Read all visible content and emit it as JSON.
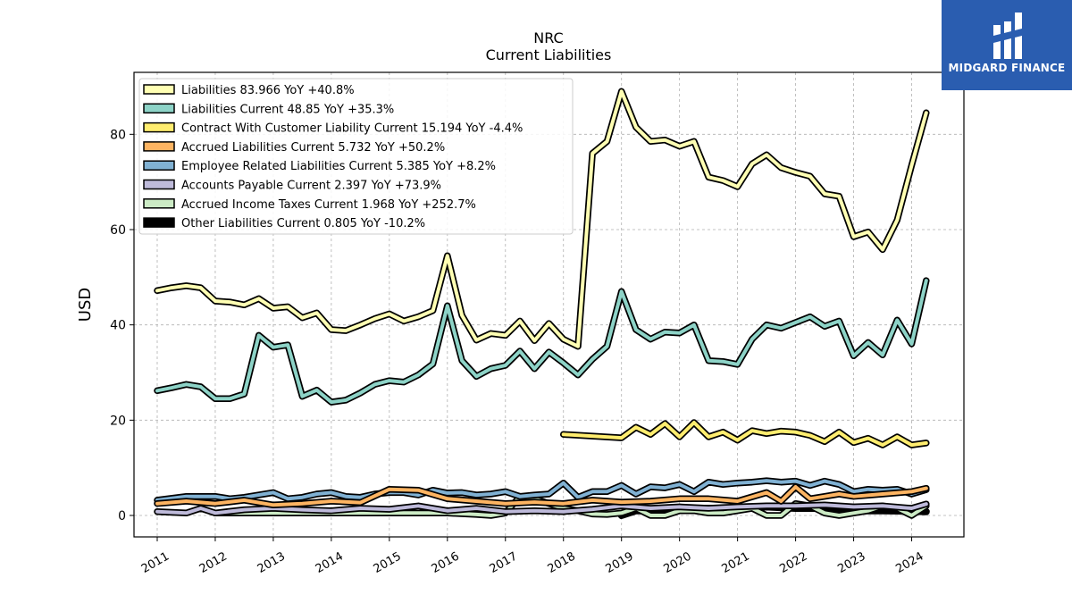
{
  "brand": {
    "name": "MIDGARD FINANCE",
    "bg_color": "#2a5db0",
    "icon": "midgard-logo-icon"
  },
  "chart_data": {
    "type": "line",
    "title": "NRC",
    "subtitle": "Current  Liabilities",
    "ylabel": "USD",
    "xlabel": "",
    "xlim": [
      2010.6,
      2024.9
    ],
    "ylim": [
      -4.5,
      93
    ],
    "yticks": [
      0,
      20,
      40,
      60,
      80
    ],
    "xticks": [
      "2011",
      "2012",
      "2013",
      "2014",
      "2015",
      "2016",
      "2017",
      "2018",
      "2019",
      "2020",
      "2021",
      "2022",
      "2023",
      "2024"
    ],
    "grid": true,
    "legend_position": "top-left",
    "series": [
      {
        "name": "Liabilities  83.966 YoY +40.8%",
        "color": "#ffffb3",
        "x": [
          2011.0,
          2011.25,
          2011.5,
          2011.75,
          2012.0,
          2012.25,
          2012.5,
          2012.75,
          2013.0,
          2013.25,
          2013.5,
          2013.75,
          2014.0,
          2014.25,
          2014.5,
          2014.75,
          2015.0,
          2015.25,
          2015.5,
          2015.75,
          2016.0,
          2016.25,
          2016.5,
          2016.75,
          2017.0,
          2017.25,
          2017.5,
          2017.75,
          2018.0,
          2018.25,
          2018.5,
          2018.75,
          2019.0,
          2019.25,
          2019.5,
          2019.75,
          2020.0,
          2020.25,
          2020.5,
          2020.75,
          2021.0,
          2021.25,
          2021.5,
          2021.75,
          2022.0,
          2022.25,
          2022.5,
          2022.75,
          2023.0,
          2023.25,
          2023.5,
          2023.75,
          2024.0,
          2024.25
        ],
        "values": [
          47.2,
          47.8,
          48.2,
          47.8,
          45.0,
          44.8,
          44.2,
          45.5,
          43.5,
          43.8,
          41.5,
          42.5,
          39.0,
          38.8,
          40.0,
          41.3,
          42.3,
          40.8,
          41.7,
          43.0,
          54.5,
          42.0,
          36.8,
          38.2,
          37.8,
          40.8,
          36.7,
          40.3,
          37.0,
          35.5,
          76.0,
          78.5,
          89.0,
          81.5,
          78.5,
          78.8,
          77.5,
          78.5,
          71.0,
          70.3,
          69.0,
          73.8,
          75.7,
          73.0,
          72.0,
          71.2,
          67.5,
          67.0,
          58.5,
          59.5,
          55.8,
          62.0,
          73.5,
          84.5
        ]
      },
      {
        "name": "Liabilities Current  48.85 YoY +35.3%",
        "color": "#8dd3c7",
        "x": [
          2011.0,
          2011.25,
          2011.5,
          2011.75,
          2012.0,
          2012.25,
          2012.5,
          2012.75,
          2013.0,
          2013.25,
          2013.5,
          2013.75,
          2014.0,
          2014.25,
          2014.5,
          2014.75,
          2015.0,
          2015.25,
          2015.5,
          2015.75,
          2016.0,
          2016.25,
          2016.5,
          2016.75,
          2017.0,
          2017.25,
          2017.5,
          2017.75,
          2018.0,
          2018.25,
          2018.5,
          2018.75,
          2019.0,
          2019.25,
          2019.5,
          2019.75,
          2020.0,
          2020.25,
          2020.5,
          2020.75,
          2021.0,
          2021.25,
          2021.5,
          2021.75,
          2022.0,
          2022.25,
          2022.5,
          2022.75,
          2023.0,
          2023.25,
          2023.5,
          2023.75,
          2024.0,
          2024.25
        ],
        "values": [
          26.2,
          26.8,
          27.5,
          27.0,
          24.5,
          24.5,
          25.5,
          37.8,
          35.3,
          35.8,
          25.0,
          26.3,
          23.8,
          24.2,
          25.7,
          27.5,
          28.3,
          28.0,
          29.5,
          31.8,
          44.0,
          32.5,
          29.2,
          30.8,
          31.5,
          34.5,
          30.8,
          34.3,
          32.0,
          29.5,
          32.8,
          35.5,
          47.0,
          39.0,
          37.0,
          38.5,
          38.3,
          40.0,
          32.5,
          32.3,
          31.7,
          37.0,
          40.0,
          39.3,
          40.5,
          41.7,
          39.7,
          40.8,
          33.5,
          36.3,
          33.7,
          41.0,
          36.0,
          49.3
        ]
      },
      {
        "name": "Contract With Customer Liability Current  15.194 YoY -4.4%",
        "color": "#ffed6f",
        "x": [
          2018.0,
          2019.0,
          2019.25,
          2019.5,
          2019.75,
          2020.0,
          2020.25,
          2020.5,
          2020.75,
          2021.0,
          2021.25,
          2021.5,
          2021.75,
          2022.0,
          2022.25,
          2022.5,
          2022.75,
          2023.0,
          2023.25,
          2023.5,
          2023.75,
          2024.0,
          2024.25
        ],
        "values": [
          17.0,
          16.3,
          18.5,
          17.0,
          19.3,
          16.5,
          19.5,
          16.5,
          17.5,
          15.8,
          17.8,
          17.2,
          17.7,
          17.5,
          16.8,
          15.5,
          17.5,
          15.3,
          16.2,
          14.8,
          16.5,
          14.8,
          15.2
        ]
      },
      {
        "name": "Accrued Liabilities Current  5.732 YoY +50.2%",
        "color": "#fdb462",
        "x": [
          2011.0,
          2011.5,
          2012.0,
          2012.5,
          2013.0,
          2013.5,
          2014.0,
          2014.5,
          2015.0,
          2015.5,
          2016.0,
          2016.5,
          2017.0,
          2017.5,
          2018.0,
          2018.5,
          2019.0,
          2019.5,
          2020.0,
          2020.5,
          2021.0,
          2021.5,
          2021.75,
          2022.0,
          2022.25,
          2022.5,
          2022.75,
          2023.0,
          2023.5,
          2024.0,
          2024.25
        ],
        "values": [
          2.5,
          3.0,
          2.5,
          3.2,
          2.2,
          2.5,
          3.0,
          2.7,
          5.5,
          5.3,
          3.5,
          3.0,
          2.5,
          2.8,
          2.5,
          3.2,
          2.8,
          3.0,
          3.5,
          3.5,
          3.0,
          4.8,
          3.0,
          6.0,
          3.5,
          4.0,
          4.5,
          4.0,
          4.5,
          5.0,
          5.7
        ]
      },
      {
        "name": "Employee Related Liabilities Current  5.385 YoY +8.2%",
        "color": "#80b1d3",
        "x": [
          2011.0,
          2011.5,
          2012.0,
          2012.25,
          2012.5,
          2013.0,
          2013.25,
          2013.5,
          2013.75,
          2014.0,
          2014.25,
          2014.5,
          2014.75,
          2015.0,
          2015.25,
          2015.5,
          2015.75,
          2016.0,
          2016.25,
          2016.5,
          2016.75,
          2017.0,
          2017.25,
          2017.5,
          2017.75,
          2018.0,
          2018.25,
          2018.5,
          2018.75,
          2019.0,
          2019.25,
          2019.5,
          2019.75,
          2020.0,
          2020.25,
          2020.5,
          2020.75,
          2021.0,
          2021.25,
          2021.5,
          2021.75,
          2022.0,
          2022.25,
          2022.5,
          2022.75,
          2023.0,
          2023.25,
          2023.5,
          2023.75,
          2024.0,
          2024.25
        ],
        "values": [
          3.2,
          4.0,
          4.0,
          3.5,
          3.8,
          4.8,
          3.5,
          3.8,
          4.5,
          4.8,
          4.0,
          3.8,
          4.5,
          4.8,
          4.8,
          4.3,
          5.3,
          4.7,
          4.8,
          4.3,
          4.5,
          5.0,
          4.0,
          4.3,
          4.5,
          6.8,
          3.8,
          5.0,
          5.0,
          6.3,
          4.5,
          6.0,
          5.8,
          6.5,
          5.0,
          7.0,
          6.5,
          6.8,
          7.0,
          7.3,
          7.0,
          7.2,
          6.3,
          7.2,
          6.5,
          5.0,
          5.5,
          5.3,
          5.5,
          4.5,
          5.4
        ]
      },
      {
        "name": "Accounts Payable Current  2.397 YoY +73.9%",
        "color": "#bebada",
        "x": [
          2011.0,
          2011.5,
          2011.75,
          2012.0,
          2012.5,
          2013.0,
          2013.5,
          2014.0,
          2014.5,
          2015.0,
          2015.5,
          2016.0,
          2016.5,
          2017.0,
          2017.5,
          2018.0,
          2018.5,
          2019.0,
          2019.5,
          2020.0,
          2020.5,
          2021.0,
          2021.5,
          2022.0,
          2022.5,
          2023.0,
          2023.5,
          2024.0,
          2024.25
        ],
        "values": [
          0.8,
          0.5,
          1.5,
          0.5,
          1.2,
          1.5,
          1.2,
          1.0,
          1.5,
          1.3,
          2.0,
          1.0,
          1.5,
          0.8,
          1.0,
          0.8,
          1.3,
          2.0,
          1.5,
          1.8,
          1.5,
          1.8,
          2.0,
          2.0,
          2.2,
          1.8,
          2.0,
          1.5,
          2.4
        ]
      },
      {
        "name": "Accrued Income Taxes Current  1.968 YoY +252.7%",
        "color": "#ccebc5",
        "x": [
          2012.0,
          2013.0,
          2014.0,
          2015.0,
          2016.0,
          2016.5,
          2016.75,
          2017.0,
          2017.25,
          2017.5,
          2017.75,
          2018.0,
          2018.25,
          2018.5,
          2018.75,
          2019.0,
          2019.25,
          2019.5,
          2019.75,
          2020.0,
          2020.25,
          2020.5,
          2020.75,
          2021.0,
          2021.25,
          2021.5,
          2021.75,
          2022.0,
          2022.25,
          2022.5,
          2022.75,
          2023.0,
          2023.25,
          2023.5,
          2023.75,
          2024.0,
          2024.25
        ],
        "values": [
          0.5,
          0.5,
          0.5,
          0.5,
          0.5,
          0.2,
          0.0,
          0.5,
          4.0,
          3.5,
          2.5,
          1.5,
          1.0,
          0.3,
          0.2,
          0.5,
          1.5,
          0.0,
          0.0,
          1.0,
          1.0,
          0.5,
          0.5,
          1.0,
          1.5,
          0.0,
          0.0,
          2.5,
          2.0,
          0.5,
          0.0,
          0.5,
          1.0,
          2.0,
          1.5,
          0.0,
          2.0
        ]
      },
      {
        "name": "Other Liabilities Current  0.805 YoY -10.2%",
        "color": "#000000",
        "x": [
          2019.0,
          2019.25,
          2019.5,
          2019.75,
          2020.0,
          2020.5,
          2021.0,
          2021.5,
          2022.0,
          2022.5,
          2023.0,
          2023.5,
          2024.0,
          2024.25
        ],
        "values": [
          0.0,
          1.0,
          1.0,
          1.0,
          1.5,
          1.5,
          1.5,
          1.8,
          1.5,
          1.5,
          1.0,
          1.0,
          0.9,
          0.8
        ]
      }
    ]
  }
}
